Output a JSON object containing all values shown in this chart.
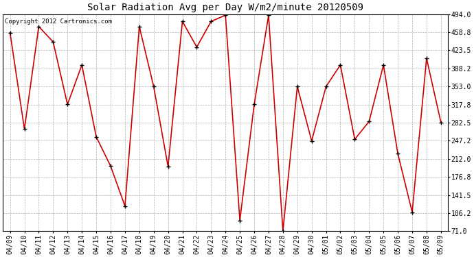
{
  "title": "Solar Radiation Avg per Day W/m2/minute 20120509",
  "copyright": "Copyright 2012 Cartronics.com",
  "labels": [
    "04/09",
    "04/10",
    "04/11",
    "04/12",
    "04/13",
    "04/14",
    "04/15",
    "04/16",
    "04/17",
    "04/18",
    "04/19",
    "04/20",
    "04/21",
    "04/22",
    "04/23",
    "04/24",
    "04/25",
    "04/26",
    "04/27",
    "04/28",
    "04/29",
    "04/30",
    "05/01",
    "05/02",
    "05/03",
    "05/04",
    "05/05",
    "05/06",
    "05/07",
    "05/08",
    "05/09"
  ],
  "values": [
    458.0,
    270.0,
    470.0,
    440.0,
    318.0,
    395.0,
    255.0,
    198.0,
    120.0,
    470.0,
    353.0,
    197.0,
    480.0,
    430.0,
    480.0,
    492.0,
    92.0,
    318.0,
    492.0,
    71.0,
    353.0,
    247.0,
    353.0,
    395.0,
    250.0,
    285.0,
    395.0,
    222.0,
    108.0,
    408.0,
    283.0
  ],
  "ylim": [
    71.0,
    494.0
  ],
  "yticks": [
    71.0,
    106.2,
    141.5,
    176.8,
    212.0,
    247.2,
    282.5,
    317.8,
    353.0,
    388.2,
    423.5,
    458.8,
    494.0
  ],
  "line_color": "#cc0000",
  "marker_color": "#000000",
  "bg_color": "#ffffff",
  "grid_color": "#b0b0b0",
  "title_fontsize": 10,
  "tick_fontsize": 7,
  "copyright_fontsize": 6.5,
  "fig_width": 6.9,
  "fig_height": 3.75,
  "dpi": 100
}
